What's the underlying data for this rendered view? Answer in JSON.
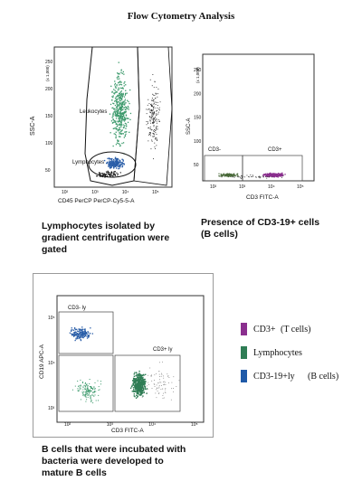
{
  "figure": {
    "title": "Flow Cytometry Analysis"
  },
  "panels": {
    "a": {
      "y_axis": "SSC-A",
      "y_multiplier": "(x 1,000)",
      "x_axis": "CD45 PerCP PerCP-Cy5-5-A",
      "gate_leukocytes": "Leukocytes",
      "gate_lymphocytes": "Lymphocytes",
      "y_ticks": [
        "50",
        "100",
        "150",
        "200",
        "250"
      ],
      "x_ticks": [
        "10²",
        "10³",
        "10⁴",
        "10⁵"
      ],
      "caption": [
        "Lymphocytes isolated by",
        "gradient centrifugation were",
        "gated"
      ]
    },
    "b": {
      "y_axis": "SSC-A",
      "y_multiplier": "(x 1,000)",
      "x_axis": "CD3 FITC-A",
      "gate_left": "CD3-",
      "gate_right": "CD3+",
      "y_ticks": [
        "50",
        "100",
        "150",
        "200",
        "250"
      ],
      "x_ticks": [
        "10²",
        "10³",
        "10⁴",
        "10⁵"
      ],
      "caption": [
        "Presence of CD3-19+ cells",
        "(B cells)"
      ]
    },
    "c": {
      "y_axis": "CD19 APC-A",
      "x_axis": "CD3 FITC-A",
      "gate_top": "CD3- ly",
      "gate_right": "CD3+ ly",
      "y_ticks": [
        "10³",
        "10⁴",
        "10⁵"
      ],
      "x_ticks": [
        "10²",
        "10³",
        "10⁴",
        "10⁵"
      ],
      "caption": [
        "B cells that were incubated with",
        "bacteria were developed to",
        "mature B cells"
      ]
    }
  },
  "legend": [
    {
      "label": "CD3+",
      "sub": "(T cells)",
      "color": "#8a2f8e"
    },
    {
      "label": "Lymphocytes",
      "sub": "",
      "color": "#2f7d55"
    },
    {
      "label": "CD3-19+ly",
      "sub": "(B cells)",
      "color": "#1f5aa8"
    }
  ]
}
